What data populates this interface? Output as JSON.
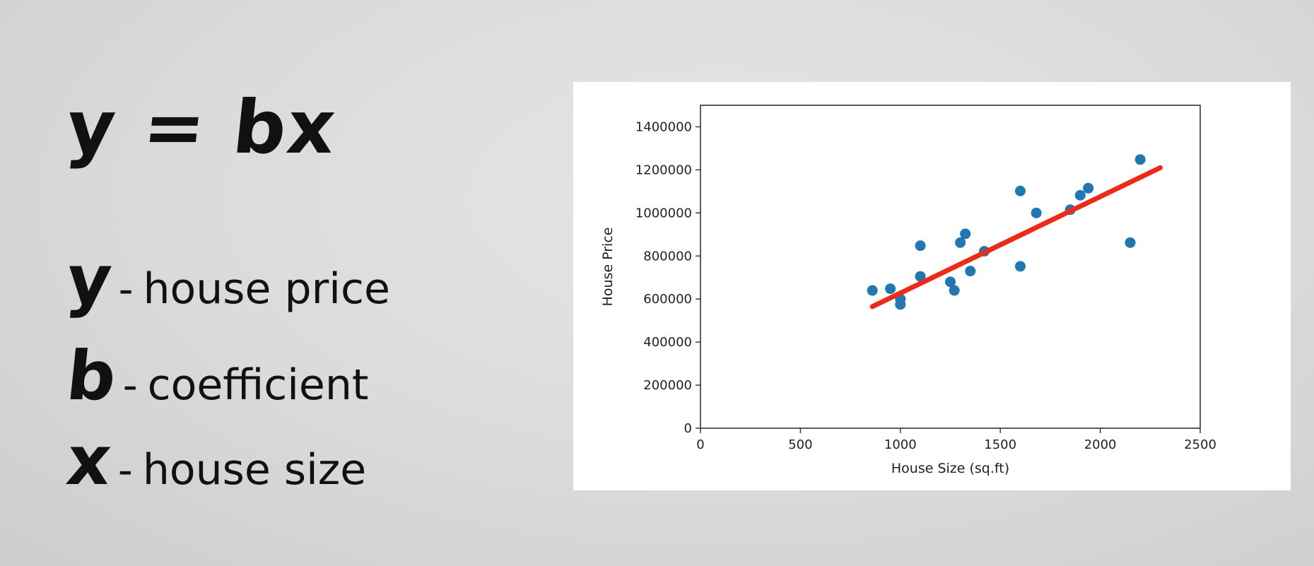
{
  "slide": {
    "formula": "y = bx",
    "definitions": [
      {
        "var": "y",
        "separator": "-",
        "text": "house price"
      },
      {
        "var": "b",
        "separator": "-",
        "text": "coefficient"
      },
      {
        "var": "x",
        "separator": "-",
        "text": "house size"
      }
    ]
  },
  "chart_data": {
    "type": "scatter",
    "title": "",
    "xlabel": "House Size (sq.ft)",
    "ylabel": "House Price",
    "xlim": [
      0,
      2500
    ],
    "ylim": [
      0,
      1500000
    ],
    "xticks": [
      0,
      500,
      1000,
      1500,
      2000,
      2500
    ],
    "xtick_labels": [
      "0",
      "500",
      "1000",
      "1500",
      "2000",
      "2500"
    ],
    "yticks": [
      0,
      200000,
      400000,
      600000,
      800000,
      1000000,
      1200000,
      1400000
    ],
    "ytick_labels": [
      "0",
      "200000",
      "400000",
      "600000",
      "800000",
      "1000000",
      "1200000",
      "1400000"
    ],
    "grid": false,
    "points": [
      {
        "x": 860,
        "y": 640000
      },
      {
        "x": 950,
        "y": 648000
      },
      {
        "x": 1000,
        "y": 600000
      },
      {
        "x": 1000,
        "y": 575000
      },
      {
        "x": 1100,
        "y": 705000
      },
      {
        "x": 1100,
        "y": 848000
      },
      {
        "x": 1250,
        "y": 680000
      },
      {
        "x": 1270,
        "y": 640000
      },
      {
        "x": 1300,
        "y": 862000
      },
      {
        "x": 1325,
        "y": 903000
      },
      {
        "x": 1350,
        "y": 730000
      },
      {
        "x": 1420,
        "y": 822000
      },
      {
        "x": 1600,
        "y": 1102000
      },
      {
        "x": 1600,
        "y": 752000
      },
      {
        "x": 1680,
        "y": 1000000
      },
      {
        "x": 1850,
        "y": 1015000
      },
      {
        "x": 1900,
        "y": 1082000
      },
      {
        "x": 1940,
        "y": 1115000
      },
      {
        "x": 2150,
        "y": 862000
      },
      {
        "x": 2200,
        "y": 1248000
      }
    ],
    "fit_line": {
      "x": [
        860,
        2300
      ],
      "y": [
        565000,
        1210000
      ]
    },
    "colors": {
      "points": "#1f77b4",
      "fit_line": "#ee2a16",
      "axes": "#333333"
    }
  }
}
